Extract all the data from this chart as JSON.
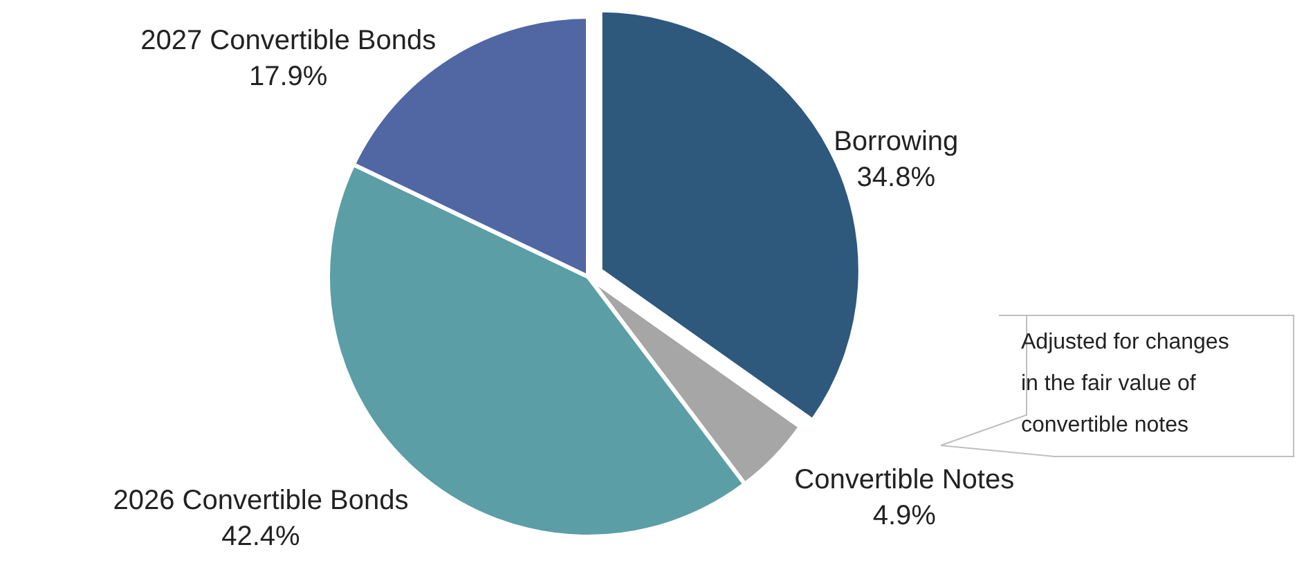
{
  "chart_data": {
    "type": "pie",
    "categories": [
      "Borrowing",
      "Convertible Notes",
      "2026 Convertible Bonds",
      "2027 Convertible Bonds"
    ],
    "values": [
      34.8,
      4.9,
      42.4,
      17.9
    ],
    "colors": [
      "#2f587d",
      "#a6a6a6",
      "#5b9ea6",
      "#5067a3"
    ],
    "value_labels": [
      "34.8%",
      "4.9%",
      "42.4%",
      "17.9%"
    ],
    "annotations": [
      "Adjusted for changes in the fair value of convertible notes"
    ]
  }
}
